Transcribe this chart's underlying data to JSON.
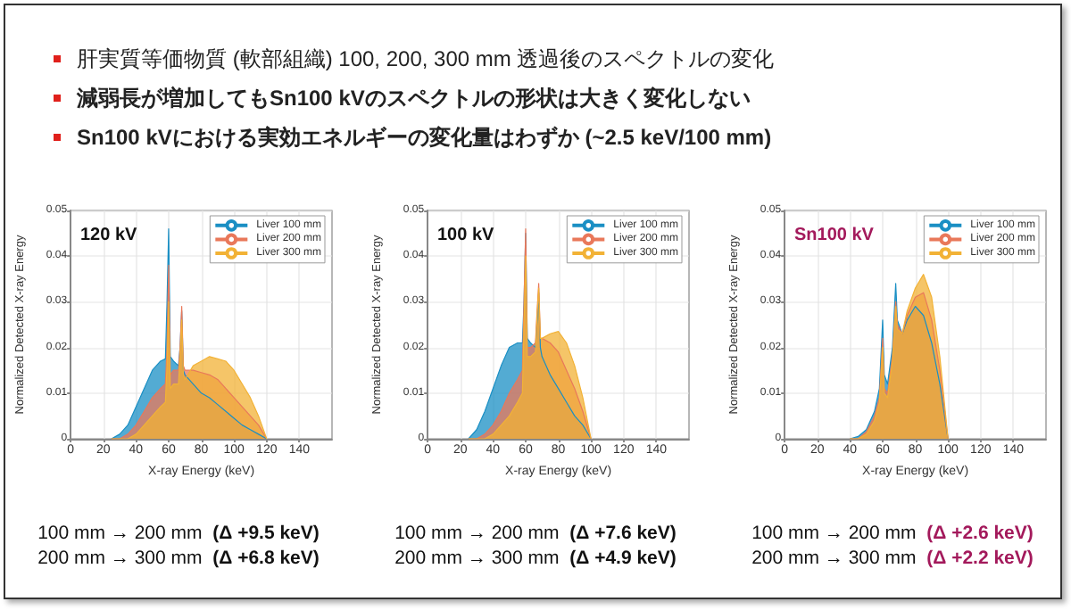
{
  "chart_data": [
    {
      "type": "other",
      "annotations": [
        "肝実質等価物質 (軟部組織) 100, 200, 300 mm 透過後のスペクトルの変化",
        "減弱長が増加してもSn100 kVのスペクトルの形状は大きく変化しない",
        "Sn100 kVにおける実効エネルギーの変化量はわずか (~2.5 keV/100 mm)"
      ]
    },
    {
      "type": "area",
      "title": "120 kV",
      "xlabel": "X-ray Energy (keV)",
      "ylabel": "Normalized Detected X-ray Energy",
      "xlim": [
        0,
        160
      ],
      "xticks": [
        0,
        20,
        40,
        60,
        80,
        100,
        120,
        140
      ],
      "ylim": [
        0,
        0.05
      ],
      "yticks": [
        0,
        0.01,
        0.02,
        0.03,
        0.04,
        0.05
      ],
      "grid": true,
      "legend": "top right",
      "x": [
        25,
        30,
        35,
        40,
        45,
        50,
        55,
        58,
        59,
        60,
        61,
        63,
        66,
        67,
        68,
        69,
        70,
        75,
        80,
        85,
        90,
        95,
        100,
        105,
        110,
        115,
        120
      ],
      "series": [
        {
          "name": "Liver 100 mm",
          "color": "#1a8fc4",
          "values": [
            0,
            0.001,
            0.003,
            0.007,
            0.011,
            0.015,
            0.017,
            0.0175,
            0.03,
            0.046,
            0.018,
            0.017,
            0.016,
            0.02,
            0.028,
            0.015,
            0.014,
            0.012,
            0.01,
            0.009,
            0.0075,
            0.006,
            0.0045,
            0.003,
            0.002,
            0.001,
            0
          ]
        },
        {
          "name": "Liver 200 mm",
          "color": "#e9785a",
          "values": [
            0,
            0,
            0.001,
            0.003,
            0.006,
            0.009,
            0.011,
            0.012,
            0.02,
            0.038,
            0.014,
            0.015,
            0.015,
            0.02,
            0.029,
            0.016,
            0.015,
            0.015,
            0.0145,
            0.014,
            0.013,
            0.011,
            0.009,
            0.007,
            0.005,
            0.003,
            0
          ]
        },
        {
          "name": "Liver 300 mm",
          "color": "#f2b236",
          "values": [
            0,
            0,
            0,
            0.001,
            0.003,
            0.005,
            0.007,
            0.008,
            0.016,
            0.03,
            0.011,
            0.012,
            0.012,
            0.018,
            0.026,
            0.014,
            0.013,
            0.016,
            0.017,
            0.018,
            0.0175,
            0.017,
            0.015,
            0.012,
            0.009,
            0.005,
            0
          ]
        }
      ],
      "annotations": [
        "100 mm → 200 mm  (Δ +9.5 keV)",
        "200 mm → 300 mm  (Δ +6.8 keV)"
      ]
    },
    {
      "type": "area",
      "title": "100 kV",
      "xlabel": "X-ray Energy (keV)",
      "ylabel": "Normalized Detected X-ray Energy",
      "xlim": [
        0,
        160
      ],
      "xticks": [
        0,
        20,
        40,
        60,
        80,
        100,
        120,
        140
      ],
      "ylim": [
        0,
        0.05
      ],
      "yticks": [
        0,
        0.01,
        0.02,
        0.03,
        0.04,
        0.05
      ],
      "grid": true,
      "legend": "top right",
      "x": [
        25,
        30,
        35,
        40,
        45,
        50,
        55,
        58,
        59,
        60,
        61,
        63,
        66,
        67,
        68,
        69,
        70,
        75,
        80,
        85,
        90,
        95,
        100
      ],
      "series": [
        {
          "name": "Liver 100 mm",
          "color": "#1a8fc4",
          "values": [
            0,
            0.002,
            0.006,
            0.011,
            0.016,
            0.02,
            0.021,
            0.021,
            0.03,
            0.045,
            0.022,
            0.021,
            0.02,
            0.026,
            0.032,
            0.02,
            0.018,
            0.014,
            0.011,
            0.008,
            0.005,
            0.003,
            0
          ]
        },
        {
          "name": "Liver 200 mm",
          "color": "#e9785a",
          "values": [
            0,
            0,
            0.001,
            0.003,
            0.006,
            0.01,
            0.013,
            0.015,
            0.03,
            0.046,
            0.02,
            0.02,
            0.021,
            0.028,
            0.034,
            0.022,
            0.022,
            0.021,
            0.019,
            0.015,
            0.011,
            0.006,
            0
          ]
        },
        {
          "name": "Liver 300 mm",
          "color": "#f2b236",
          "values": [
            0,
            0,
            0,
            0.001,
            0.003,
            0.005,
            0.008,
            0.01,
            0.025,
            0.04,
            0.018,
            0.018,
            0.019,
            0.027,
            0.033,
            0.022,
            0.022,
            0.023,
            0.0235,
            0.021,
            0.016,
            0.009,
            0
          ]
        }
      ],
      "annotations": [
        "100 mm → 200 mm  (Δ +7.6 keV)",
        "200 mm → 300 mm  (Δ +4.9 keV)"
      ]
    },
    {
      "type": "area",
      "title": "Sn100 kV",
      "xlabel": "X-ray Energy (keV)",
      "ylabel": "Normalized Detected X-ray Energy",
      "xlim": [
        0,
        160
      ],
      "xticks": [
        0,
        20,
        40,
        60,
        80,
        100,
        120,
        140
      ],
      "ylim": [
        0,
        0.05
      ],
      "yticks": [
        0,
        0.01,
        0.02,
        0.03,
        0.04,
        0.05
      ],
      "grid": true,
      "legend": "top right",
      "x": [
        40,
        45,
        50,
        55,
        58,
        60,
        61,
        63,
        66,
        68,
        69,
        72,
        75,
        80,
        85,
        90,
        95,
        100
      ],
      "series": [
        {
          "name": "Liver 100 mm",
          "color": "#1a8fc4",
          "values": [
            0,
            0.0005,
            0.002,
            0.006,
            0.011,
            0.026,
            0.014,
            0.012,
            0.02,
            0.034,
            0.026,
            0.023,
            0.026,
            0.029,
            0.027,
            0.021,
            0.012,
            0
          ]
        },
        {
          "name": "Liver 200 mm",
          "color": "#e9785a",
          "values": [
            0,
            0,
            0.0015,
            0.005,
            0.009,
            0.022,
            0.011,
            0.01,
            0.018,
            0.03,
            0.025,
            0.023,
            0.027,
            0.031,
            0.032,
            0.026,
            0.015,
            0
          ]
        },
        {
          "name": "Liver 300 mm",
          "color": "#f2b236",
          "values": [
            0,
            0,
            0.001,
            0.004,
            0.008,
            0.02,
            0.01,
            0.009,
            0.017,
            0.029,
            0.024,
            0.023,
            0.028,
            0.033,
            0.036,
            0.031,
            0.018,
            0
          ]
        }
      ],
      "annotations": [
        "100 mm → 200 mm  (Δ +2.6 keV)",
        "200 mm → 300 mm  (Δ +2.2 keV)"
      ]
    }
  ]
}
